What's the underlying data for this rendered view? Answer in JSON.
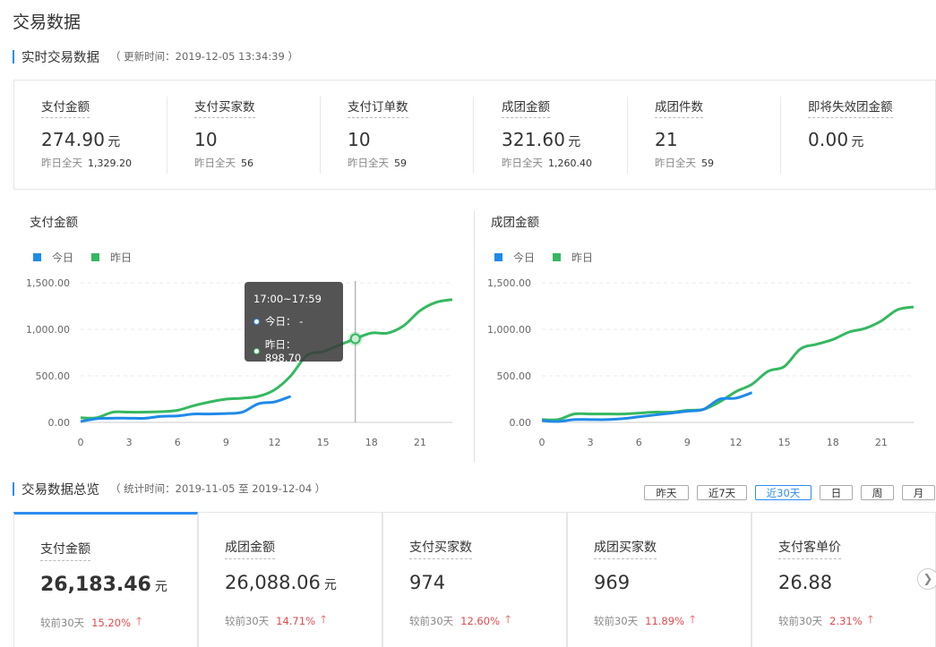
{
  "page": {
    "title": "交易数据"
  },
  "realtime": {
    "title": "实时交易数据",
    "update_time": "（ 更新时间：2019-12-05 13:34:39 ）",
    "yesterday_label": "昨日全天",
    "unit": "元",
    "items": [
      {
        "label": "支付金额",
        "value": "274.90",
        "unit": "元",
        "yesterday": "1,329.20"
      },
      {
        "label": "支付买家数",
        "value": "10",
        "unit": "",
        "yesterday": "56"
      },
      {
        "label": "支付订单数",
        "value": "10",
        "unit": "",
        "yesterday": "59"
      },
      {
        "label": "成团金额",
        "value": "321.60",
        "unit": "元",
        "yesterday": "1,260.40"
      },
      {
        "label": "成团件数",
        "value": "21",
        "unit": "",
        "yesterday": "59"
      },
      {
        "label": "即将失效团金额",
        "value": "0.00",
        "unit": "元",
        "yesterday": ""
      }
    ]
  },
  "legend": {
    "today": "今日",
    "yesterday": "昨日"
  },
  "colors": {
    "accent": "#2d8cf0",
    "today": "#1f8ae8",
    "yesterday": "#35b861",
    "up": "#e5484d"
  },
  "tooltip": {
    "time": "17:00~17:59",
    "today": "今日： -",
    "yesterday": "昨日： 898.70"
  },
  "chart_data": [
    {
      "type": "line",
      "title": "支付金额",
      "x_ticks": [
        0,
        3,
        6,
        9,
        12,
        15,
        18,
        21
      ],
      "y_ticks": [
        "0.00",
        "500.00",
        "1,000.00",
        "1,500.00"
      ],
      "ylim": [
        0,
        1500
      ],
      "xlim": [
        0,
        23
      ],
      "grid": true,
      "legend_position": "top-left",
      "series": [
        {
          "name": "今日",
          "x": [
            0,
            1,
            2,
            3,
            4,
            5,
            6,
            7,
            8,
            9,
            10,
            11,
            12,
            13
          ],
          "values": [
            10,
            40,
            45,
            45,
            45,
            65,
            70,
            90,
            90,
            95,
            110,
            200,
            220,
            280
          ]
        },
        {
          "name": "昨日",
          "x": [
            0,
            1,
            2,
            3,
            4,
            5,
            6,
            7,
            8,
            9,
            10,
            11,
            12,
            13,
            14,
            15,
            16,
            17,
            18,
            19,
            20,
            21,
            22,
            23
          ],
          "values": [
            50,
            50,
            110,
            110,
            110,
            115,
            130,
            180,
            220,
            250,
            260,
            280,
            350,
            500,
            720,
            760,
            830,
            898.7,
            960,
            960,
            1040,
            1200,
            1290,
            1320
          ]
        }
      ]
    },
    {
      "type": "line",
      "title": "成团金额",
      "x_ticks": [
        0,
        3,
        6,
        9,
        12,
        15,
        18,
        21
      ],
      "y_ticks": [
        "0.00",
        "500.00",
        "1,000.00",
        "1,500.00"
      ],
      "ylim": [
        0,
        1500
      ],
      "xlim": [
        0,
        23
      ],
      "grid": true,
      "legend_position": "top-left",
      "series": [
        {
          "name": "今日",
          "x": [
            0,
            1,
            2,
            3,
            4,
            5,
            6,
            7,
            8,
            9,
            10,
            11,
            12,
            13
          ],
          "values": [
            20,
            10,
            30,
            30,
            30,
            40,
            60,
            80,
            100,
            120,
            140,
            250,
            260,
            320
          ]
        },
        {
          "name": "昨日",
          "x": [
            0,
            1,
            2,
            3,
            4,
            5,
            6,
            7,
            8,
            9,
            10,
            11,
            12,
            13,
            14,
            15,
            16,
            17,
            18,
            19,
            20,
            21,
            22,
            23
          ],
          "values": [
            30,
            30,
            90,
            90,
            90,
            90,
            100,
            110,
            110,
            130,
            140,
            220,
            330,
            410,
            550,
            600,
            790,
            840,
            890,
            970,
            1010,
            1090,
            1210,
            1240
          ]
        }
      ]
    }
  ],
  "overview": {
    "title": "交易数据总览",
    "stat_time": "（ 统计时间：2019-11-05 至 2019-12-04 ）",
    "periods": [
      "昨天",
      "近7天",
      "近30天",
      "日",
      "周",
      "月"
    ],
    "active_period": "近30天",
    "compare_label": "较前30天",
    "cards": [
      {
        "label": "支付金额",
        "value": "26,183.46",
        "unit": "元",
        "pct": "15.20%"
      },
      {
        "label": "成团金额",
        "value": "26,088.06",
        "unit": "元",
        "pct": "14.71%"
      },
      {
        "label": "支付买家数",
        "value": "974",
        "unit": "",
        "pct": "12.60%"
      },
      {
        "label": "成团买家数",
        "value": "969",
        "unit": "",
        "pct": "11.89%"
      },
      {
        "label": "支付客单价",
        "value": "26.88",
        "unit": "",
        "pct": "2.31%"
      }
    ],
    "next_icon": "chevron-right-icon"
  }
}
